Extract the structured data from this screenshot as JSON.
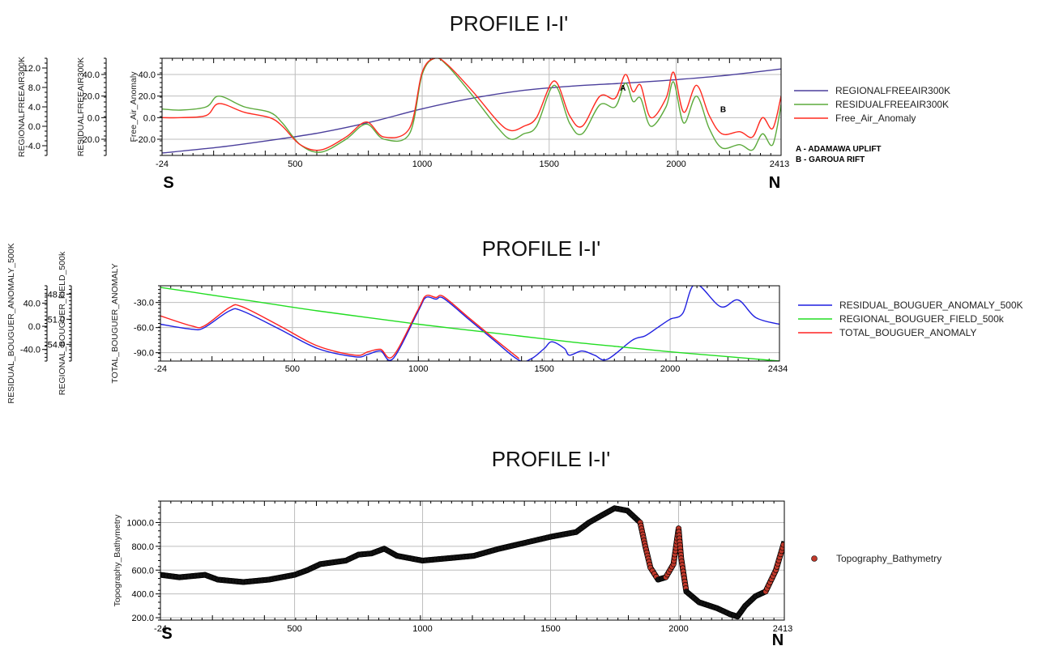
{
  "chart_data": [
    {
      "type": "line",
      "title": "PROFILE I-I'",
      "x_ticks": [
        "-24",
        "500",
        "1000",
        "1500",
        "2000",
        "2413"
      ],
      "xlim": [
        -24,
        2413
      ],
      "direction_labels": {
        "start": "S",
        "end": "N"
      },
      "annotations": [
        {
          "text": "A",
          "x": 1790,
          "y": 25
        },
        {
          "text": "B",
          "x": 2185,
          "y": 5
        }
      ],
      "notes": [
        "A - ADAMAWA UPLIFT",
        "B - GAROUA RIFT"
      ],
      "y_axes": [
        {
          "label": "REGIONALFREEAIR300K",
          "ticks": [
            "12.0",
            "8.0",
            "4.0",
            "0.0",
            "-4.0"
          ],
          "ylim": [
            -6,
            14
          ]
        },
        {
          "label": "RESIDUALFREEAIR300K",
          "ticks": [
            "40.0",
            "20.0",
            "0.0",
            "-20.0"
          ],
          "ylim": [
            -35,
            55
          ]
        },
        {
          "label": "Free_Air_Anomaly",
          "ticks": [
            "40.0",
            "20.0",
            "0.0",
            "-20.0"
          ],
          "ylim": [
            -35,
            55
          ]
        }
      ],
      "series": [
        {
          "name": "REGIONALFREEAIR300K",
          "color": "#4b3f9c",
          "axis": 0,
          "x": [
            -24,
            200,
            400,
            600,
            800,
            1000,
            1200,
            1400,
            1600,
            1800,
            2000,
            2200,
            2413
          ],
          "values": [
            -5.5,
            -4.3,
            -2.9,
            -1.3,
            0.9,
            3.6,
            5.8,
            7.4,
            8.3,
            8.9,
            9.6,
            10.5,
            11.8
          ]
        },
        {
          "name": "RESIDUALFREEAIR300K",
          "color": "#5caa3c",
          "axis": 1,
          "x": [
            -24,
            50,
            150,
            200,
            300,
            400,
            450,
            520,
            600,
            700,
            780,
            850,
            950,
            1000,
            1050,
            1100,
            1200,
            1300,
            1350,
            1400,
            1450,
            1520,
            1580,
            1630,
            1700,
            1760,
            1800,
            1830,
            1860,
            1900,
            1960,
            1990,
            2030,
            2080,
            2130,
            2180,
            2250,
            2300,
            2340,
            2380,
            2413
          ],
          "values": [
            8,
            7,
            10,
            20,
            10,
            5,
            -5,
            -25,
            -32,
            -20,
            -6,
            -20,
            -15,
            40,
            55,
            48,
            20,
            -10,
            -20,
            -15,
            -8,
            30,
            -5,
            -15,
            12,
            10,
            32,
            15,
            18,
            -8,
            10,
            33,
            -5,
            20,
            -10,
            -28,
            -25,
            -30,
            -15,
            -25,
            12
          ]
        },
        {
          "name": "Free_Air_Anomaly",
          "color": "#ff2a1f",
          "axis": 2,
          "x": [
            -24,
            50,
            150,
            200,
            300,
            400,
            450,
            520,
            600,
            700,
            780,
            850,
            950,
            1000,
            1050,
            1100,
            1200,
            1300,
            1350,
            1400,
            1450,
            1520,
            1580,
            1630,
            1700,
            1760,
            1800,
            1830,
            1860,
            1900,
            1960,
            1990,
            2030,
            2080,
            2130,
            2180,
            2250,
            2300,
            2340,
            2380,
            2413
          ],
          "values": [
            0,
            0,
            2,
            13,
            5,
            0,
            -8,
            -25,
            -30,
            -18,
            -4,
            -18,
            -10,
            42,
            55,
            49,
            24,
            -4,
            -12,
            -8,
            0,
            34,
            2,
            -8,
            20,
            18,
            40,
            24,
            30,
            0,
            18,
            42,
            5,
            30,
            2,
            -15,
            -13,
            -18,
            0,
            -10,
            20
          ]
        }
      ]
    },
    {
      "type": "line",
      "title": "PROFILE I-I'",
      "x_ticks": [
        "-24",
        "500",
        "1000",
        "1500",
        "2000",
        "2434"
      ],
      "xlim": [
        -24,
        2434
      ],
      "y_axes": [
        {
          "label": "RESIDUAL_BOUGUER_ANOMALY_500K",
          "ticks": [
            "40.0",
            "0.0",
            "-40.0"
          ],
          "ylim": [
            -60,
            70
          ]
        },
        {
          "label": "REGIONAL_BOUGUER_FIELD_500k",
          "ticks": [
            "-48.0",
            "-51.0",
            "-54.0"
          ],
          "ylim": [
            -56,
            -47
          ]
        },
        {
          "label": "TOTAL_BOUGUER_ANOMALY",
          "ticks": [
            "-30.0",
            "-60.0",
            "-90.0"
          ],
          "ylim": [
            -100,
            -10
          ]
        }
      ],
      "series": [
        {
          "name": "RESIDUAL_BOUGUER_ANOMALY_500K",
          "color": "#1f1fe0",
          "axis": 2,
          "x": [
            -24,
            100,
            150,
            250,
            300,
            450,
            600,
            750,
            800,
            850,
            900,
            1000,
            1030,
            1070,
            1100,
            1200,
            1300,
            1400,
            1450,
            1500,
            1530,
            1580,
            1600,
            1650,
            1700,
            1750,
            1850,
            1900,
            1950,
            2000,
            2050,
            2100,
            2200,
            2270,
            2340,
            2434
          ],
          "values": [
            -56,
            -62,
            -60,
            -40,
            -40,
            -62,
            -85,
            -95,
            -92,
            -88,
            -97,
            -40,
            -24,
            -26,
            -25,
            -50,
            -75,
            -99,
            -97,
            -85,
            -77,
            -85,
            -93,
            -88,
            -93,
            -98,
            -75,
            -70,
            -60,
            -50,
            -43,
            -8,
            -35,
            -27,
            -48,
            -56
          ]
        },
        {
          "name": "REGIONAL_BOUGUER_FIELD_500k",
          "color": "#22dd22",
          "axis": 2,
          "x": [
            -24,
            200,
            400,
            600,
            800,
            1000,
            1200,
            1400,
            1600,
            1800,
            2000,
            2200,
            2434
          ],
          "values": [
            -12,
            -22,
            -31,
            -40,
            -48,
            -56,
            -63,
            -70,
            -77,
            -83,
            -89,
            -94,
            -100
          ]
        },
        {
          "name": "TOTAL_BOUGUER_ANOMALY",
          "color": "#ff2020",
          "axis": 2,
          "x": [
            -24,
            100,
            150,
            250,
            300,
            450,
            600,
            750,
            800,
            850,
            900,
            1000,
            1030,
            1070,
            1100,
            1200,
            1300,
            1400
          ],
          "values": [
            -46,
            -58,
            -58,
            -36,
            -35,
            -58,
            -82,
            -93,
            -89,
            -86,
            -94,
            -38,
            -22,
            -24,
            -23,
            -48,
            -73,
            -97
          ]
        }
      ]
    },
    {
      "type": "scatter",
      "title": "PROFILE I-I'",
      "x_ticks": [
        "-24",
        "500",
        "1000",
        "1500",
        "2000",
        "2413"
      ],
      "xlim": [
        -24,
        2413
      ],
      "direction_labels": {
        "start": "S",
        "end": "N"
      },
      "y_axes": [
        {
          "label": "Topography_Bathymetry",
          "ticks": [
            "1000.0",
            "800.0",
            "600.0",
            "400.0",
            "200.0"
          ],
          "ylim": [
            180,
            1180
          ]
        }
      ],
      "series": [
        {
          "name": "Topography_Bathymetry",
          "marker_color": "#c0392b",
          "line_color": "#000000",
          "x": [
            -24,
            50,
            150,
            200,
            250,
            300,
            350,
            400,
            500,
            550,
            600,
            700,
            750,
            800,
            850,
            900,
            950,
            1000,
            1100,
            1200,
            1300,
            1400,
            1500,
            1600,
            1650,
            1700,
            1750,
            1800,
            1850,
            1870,
            1890,
            1920,
            1950,
            1980,
            2000,
            2010,
            2030,
            2080,
            2150,
            2200,
            2230,
            2260,
            2300,
            2340,
            2380,
            2413
          ],
          "values": [
            560,
            540,
            560,
            520,
            510,
            500,
            510,
            520,
            560,
            600,
            650,
            680,
            730,
            740,
            780,
            720,
            700,
            680,
            700,
            720,
            780,
            830,
            880,
            920,
            1000,
            1060,
            1120,
            1100,
            1000,
            800,
            620,
            520,
            540,
            650,
            950,
            700,
            420,
            330,
            280,
            230,
            210,
            300,
            380,
            420,
            600,
            840
          ]
        }
      ]
    }
  ]
}
